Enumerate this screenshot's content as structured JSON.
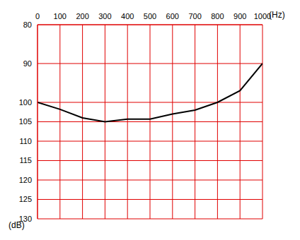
{
  "chart_data": {
    "type": "line",
    "x_label": "(Hz)",
    "y_label": "(dB)",
    "x": [
      0,
      100,
      200,
      300,
      400,
      500,
      600,
      700,
      800,
      900,
      1000
    ],
    "values": [
      100,
      101.8,
      104,
      105,
      104.3,
      104.3,
      103,
      102,
      100,
      97,
      90
    ],
    "color": "#000000",
    "xlim": [
      0,
      1000
    ],
    "xticks": [
      0,
      100,
      200,
      300,
      400,
      500,
      600,
      700,
      800,
      900,
      1000
    ],
    "ylim": [
      80,
      130
    ],
    "yticks": [
      80,
      90,
      100,
      105,
      110,
      115,
      120,
      125,
      130
    ],
    "grid": true
  }
}
